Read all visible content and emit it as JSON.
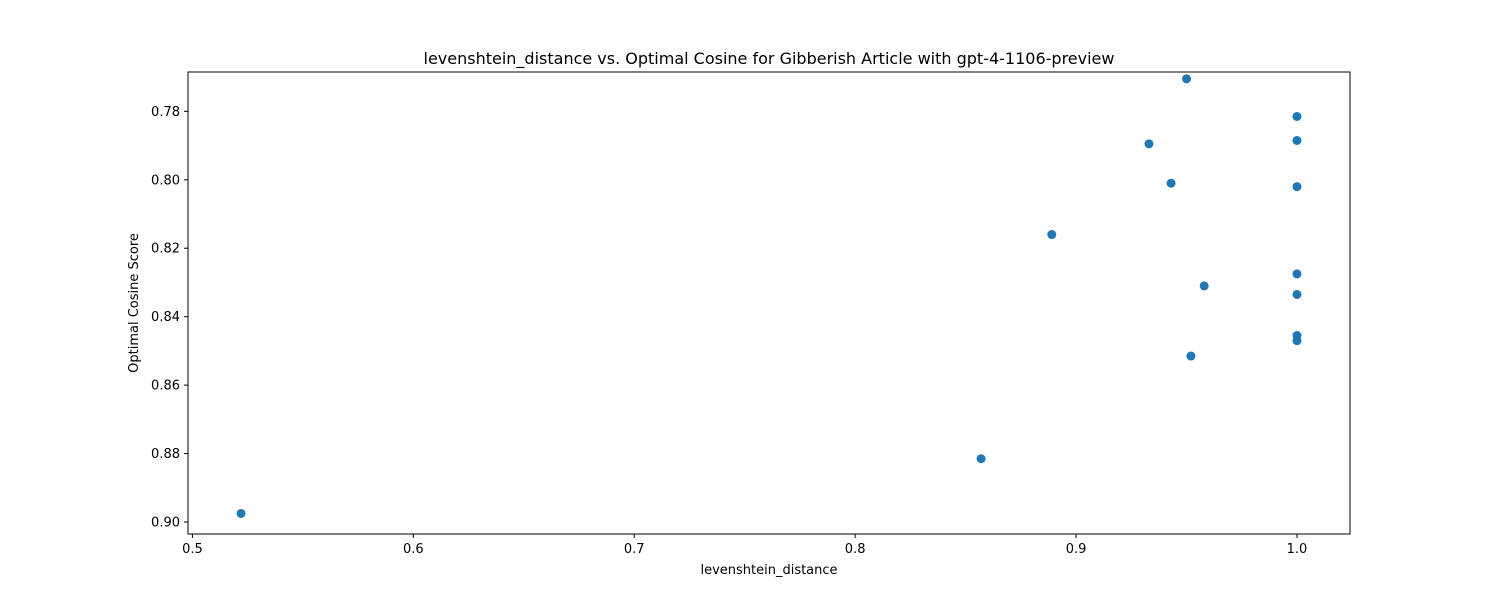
{
  "chart_data": {
    "type": "scatter",
    "title": "levenshtein_distance vs. Optimal Cosine for Gibberish Article with gpt-4-1106-preview",
    "xlabel": "levenshtein_distance",
    "ylabel": "Optimal Cosine Score",
    "xlim": [
      0.498,
      1.024
    ],
    "ylim": [
      0.7685,
      0.9035
    ],
    "y_inverted": true,
    "grid": false,
    "legend": "none",
    "x_ticks": [
      0.5,
      0.6,
      0.7,
      0.8,
      0.9,
      1.0
    ],
    "x_tick_labels": [
      "0.5",
      "0.6",
      "0.7",
      "0.8",
      "0.9",
      "1.0"
    ],
    "y_ticks": [
      0.78,
      0.8,
      0.82,
      0.84,
      0.86,
      0.88,
      0.9
    ],
    "y_tick_labels": [
      "0.78",
      "0.80",
      "0.82",
      "0.84",
      "0.86",
      "0.88",
      "0.90"
    ],
    "marker_color": "#1f77b4",
    "points": [
      {
        "x": 0.95,
        "y": 0.7705
      },
      {
        "x": 1.0,
        "y": 0.7815
      },
      {
        "x": 1.0,
        "y": 0.7885
      },
      {
        "x": 0.933,
        "y": 0.7895
      },
      {
        "x": 0.943,
        "y": 0.801
      },
      {
        "x": 1.0,
        "y": 0.802
      },
      {
        "x": 0.889,
        "y": 0.816
      },
      {
        "x": 1.0,
        "y": 0.8275
      },
      {
        "x": 0.958,
        "y": 0.831
      },
      {
        "x": 1.0,
        "y": 0.8335
      },
      {
        "x": 1.0,
        "y": 0.8455
      },
      {
        "x": 1.0,
        "y": 0.847
      },
      {
        "x": 0.952,
        "y": 0.8515
      },
      {
        "x": 0.857,
        "y": 0.8815
      },
      {
        "x": 0.522,
        "y": 0.8975
      }
    ]
  }
}
